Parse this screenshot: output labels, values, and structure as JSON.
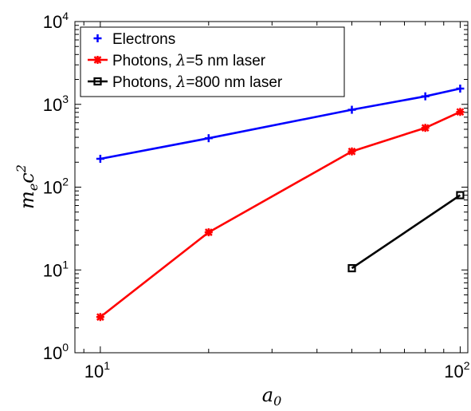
{
  "chart_data": {
    "type": "line",
    "title": "",
    "xlabel": {
      "base": "a",
      "sub": "0"
    },
    "ylabel": {
      "base": "m",
      "sub": "e",
      "mid": "c",
      "sup": "2"
    },
    "xscale": "log",
    "yscale": "log",
    "xlim": [
      8.5,
      105
    ],
    "ylim": [
      1,
      10000
    ],
    "grid": false,
    "legend_position": "top-left",
    "x_ticks": [
      {
        "value": 10,
        "base": "10",
        "exp": "1"
      },
      {
        "value": 100,
        "base": "10",
        "exp": "2"
      }
    ],
    "y_ticks": [
      {
        "value": 1,
        "base": "10",
        "exp": "0"
      },
      {
        "value": 10,
        "base": "10",
        "exp": "1"
      },
      {
        "value": 100,
        "base": "10",
        "exp": "2"
      },
      {
        "value": 1000,
        "base": "10",
        "exp": "3"
      },
      {
        "value": 10000,
        "base": "10",
        "exp": "4"
      }
    ],
    "series": [
      {
        "name": "Electrons",
        "legend_parts": [
          "Electrons"
        ],
        "color": "#0000ff",
        "marker": "plus",
        "x": [
          10,
          20,
          50,
          80,
          100
        ],
        "y": [
          220,
          390,
          860,
          1250,
          1550
        ]
      },
      {
        "name": "Photons, λ=5 nm laser",
        "legend_parts": [
          "Photons, ",
          "λ",
          "=5 nm laser"
        ],
        "color": "#ff0000",
        "marker": "star",
        "x": [
          10,
          20,
          50,
          80,
          100
        ],
        "y": [
          2.7,
          28.5,
          270,
          520,
          810
        ]
      },
      {
        "name": "Photons, λ=800 nm laser",
        "legend_parts": [
          "Photons, ",
          "λ",
          "=800 nm laser"
        ],
        "color": "#000000",
        "marker": "square",
        "x": [
          50,
          100
        ],
        "y": [
          10.5,
          80
        ]
      }
    ]
  }
}
